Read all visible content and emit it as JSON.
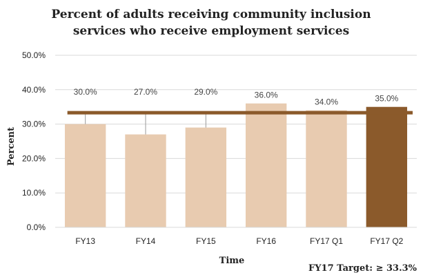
{
  "chart_data": {
    "type": "bar",
    "title_lines": [
      "Percent of adults receiving community inclusion",
      "services who receive employment services"
    ],
    "xlabel": "Time",
    "ylabel": "Percent",
    "categories": [
      "FY13",
      "FY14",
      "FY15",
      "FY16",
      "FY17 Q1",
      "FY17 Q2"
    ],
    "values": [
      30.0,
      27.0,
      29.0,
      36.0,
      34.0,
      35.0
    ],
    "value_labels": [
      "30.0%",
      "27.0%",
      "29.0%",
      "36.0%",
      "34.0%",
      "35.0%"
    ],
    "ylim": [
      0,
      50
    ],
    "yticks": [
      0,
      10,
      20,
      30,
      40,
      50
    ],
    "ytick_labels": [
      "0.0%",
      "10.0%",
      "20.0%",
      "30.0%",
      "40.0%",
      "50.0%"
    ],
    "target": {
      "value": 33.3,
      "label": "FY17 Target: ≥ 33.3%"
    },
    "grid": true,
    "legend": "none",
    "colors": {
      "bar": "#e8cbb0",
      "highlight_bar": "#8b5a2b",
      "target_line": "#8b5a2b",
      "grid": "#d9d9d9"
    },
    "highlight_index": 5
  }
}
